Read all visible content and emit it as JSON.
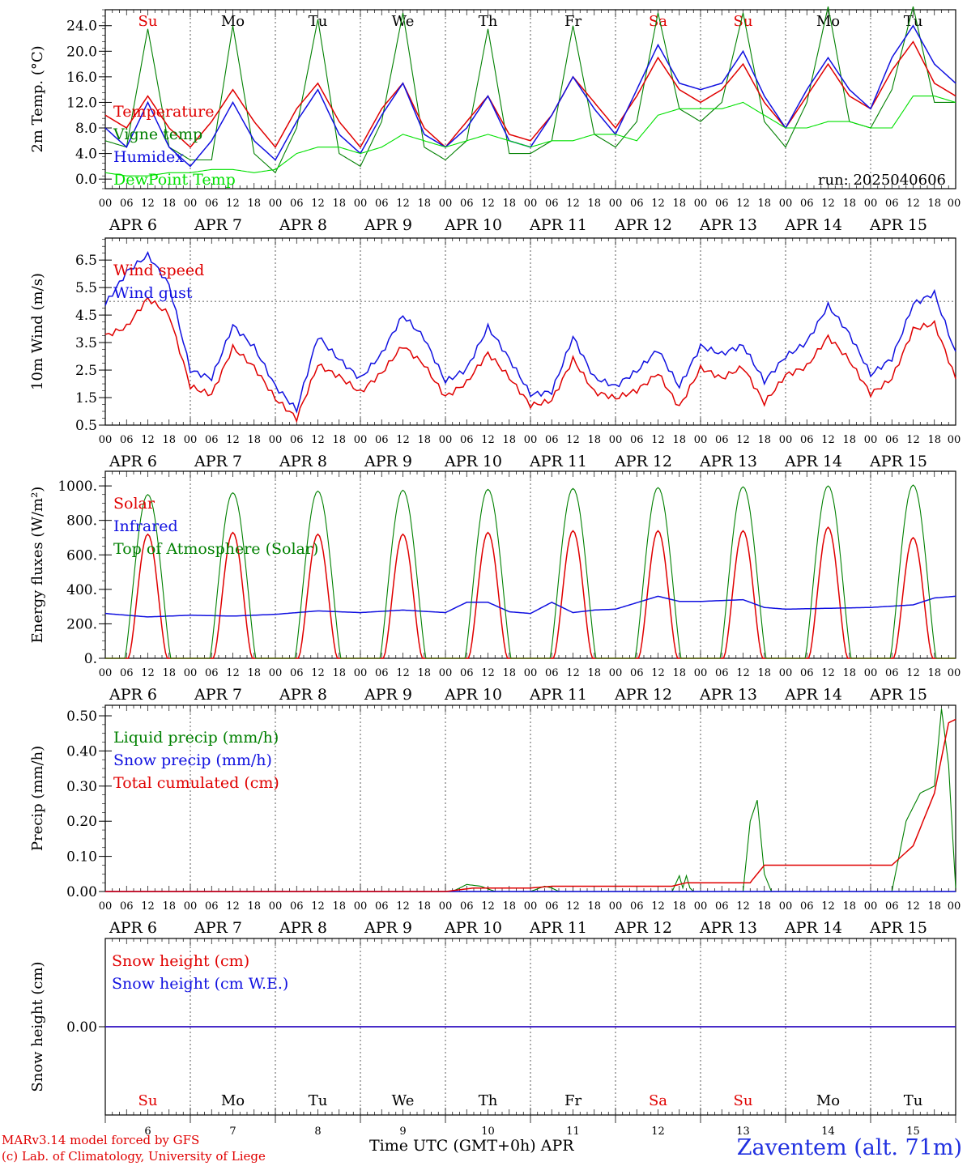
{
  "run_label": "run: 2025040606",
  "footer": {
    "model_line1": "MARv3.14 model forced by GFS",
    "model_line2": "(c) Lab. of Climatology, University of Liege",
    "station": "Zaventem (alt. 71m)",
    "xlabel": "Time UTC (GMT+0h) APR"
  },
  "time_axis": {
    "hour_ticks": [
      "00",
      "06",
      "12",
      "18"
    ],
    "final_hour_tick": "00",
    "day_labels": [
      "APR 6",
      "APR 7",
      "APR 8",
      "APR 9",
      "APR 10",
      "APR 11",
      "APR 12",
      "APR 13",
      "APR 14",
      "APR 15"
    ],
    "weekdays": [
      "Su",
      "Mo",
      "Tu",
      "We",
      "Th",
      "Fr",
      "Sa",
      "Su",
      "Mo",
      "Tu"
    ],
    "weekend_color": "#e00000",
    "weekday_color": "#000000",
    "day_numbers": [
      "6",
      "7",
      "8",
      "9",
      "10",
      "11",
      "12",
      "13",
      "14",
      "15"
    ]
  },
  "chart_data": [
    {
      "type": "line",
      "ylabel": "2m Temp. (°C)",
      "ylim": [
        -1.5,
        26.5
      ],
      "yticks": [
        "0.0",
        "4.0",
        "8.0",
        "12.0",
        "16.0",
        "20.0",
        "24.0"
      ],
      "ytick_values": [
        0,
        4,
        8,
        12,
        16,
        20,
        24
      ],
      "x_unit": "hours since 2025-04-06 00 UTC",
      "xlim": [
        0,
        240
      ],
      "series": [
        {
          "name": "Vigne temp",
          "color": "#008000",
          "x": [
            0,
            6,
            12,
            18,
            24,
            30,
            36,
            42,
            48,
            54,
            60,
            66,
            72,
            78,
            84,
            90,
            96,
            102,
            108,
            114,
            120,
            126,
            132,
            138,
            144,
            150,
            156,
            162,
            168,
            174,
            180,
            186,
            192,
            198,
            204,
            210,
            216,
            222,
            228,
            234,
            240
          ],
          "y": [
            6,
            5,
            23.5,
            5,
            3,
            3,
            24,
            4,
            1,
            8,
            25,
            4,
            2,
            9,
            26,
            5,
            3,
            6,
            23.5,
            4,
            4,
            6,
            24,
            7,
            5,
            9,
            26,
            11,
            9,
            12,
            26,
            9,
            5,
            12,
            27,
            9,
            8,
            14,
            27,
            12,
            12
          ]
        },
        {
          "name": "Temperature",
          "color": "#e00000",
          "x": [
            0,
            6,
            12,
            18,
            24,
            30,
            36,
            42,
            48,
            54,
            60,
            66,
            72,
            78,
            84,
            90,
            96,
            102,
            108,
            114,
            120,
            126,
            132,
            138,
            144,
            150,
            156,
            162,
            168,
            174,
            180,
            186,
            192,
            198,
            204,
            210,
            216,
            222,
            228,
            234,
            240
          ],
          "y": [
            10,
            8,
            13,
            8,
            5,
            9,
            14,
            9,
            5,
            11,
            15,
            9,
            5,
            11,
            15,
            8,
            5,
            9,
            13,
            7,
            6,
            10,
            16,
            12,
            8,
            13,
            19,
            14,
            12,
            14,
            18,
            12,
            8,
            13,
            18,
            13,
            11,
            17,
            21.5,
            15,
            13
          ]
        },
        {
          "name": "Humidex",
          "color": "#1010e0",
          "x": [
            0,
            6,
            12,
            18,
            24,
            30,
            36,
            42,
            48,
            54,
            60,
            66,
            72,
            78,
            84,
            90,
            96,
            102,
            108,
            114,
            120,
            126,
            132,
            138,
            144,
            150,
            156,
            162,
            168,
            174,
            180,
            186,
            192,
            198,
            204,
            210,
            216,
            222,
            228,
            234,
            240
          ],
          "y": [
            8,
            5,
            12,
            5,
            2,
            6,
            12,
            6,
            3,
            9,
            14,
            7,
            4,
            10,
            15,
            7,
            5,
            8,
            13,
            6,
            5,
            10,
            16,
            11,
            7,
            14,
            21,
            15,
            14,
            15,
            20,
            13,
            8,
            14,
            19,
            14,
            11,
            19,
            24,
            18,
            15
          ]
        },
        {
          "name": "DewPoint Temp",
          "color": "#00e000",
          "x": [
            0,
            6,
            12,
            18,
            24,
            30,
            36,
            42,
            48,
            54,
            60,
            66,
            72,
            78,
            84,
            90,
            96,
            102,
            108,
            114,
            120,
            126,
            132,
            138,
            144,
            150,
            156,
            162,
            168,
            174,
            180,
            186,
            192,
            198,
            204,
            210,
            216,
            222,
            228,
            234,
            240
          ],
          "y": [
            1,
            0.5,
            0.5,
            1,
            1,
            1.5,
            1.5,
            1,
            1.5,
            4,
            5,
            5,
            4,
            5,
            7,
            6,
            5,
            6,
            7,
            6,
            5,
            6,
            6,
            7,
            7,
            6,
            10,
            11,
            11,
            11,
            12,
            10,
            8,
            8,
            9,
            9,
            8,
            8,
            13,
            13,
            12
          ]
        }
      ]
    },
    {
      "type": "line",
      "ylabel": "10m Wind (m/s)",
      "ylim": [
        0.5,
        7.3
      ],
      "yticks": [
        "0.5",
        "1.5",
        "2.5",
        "3.5",
        "4.5",
        "5.5",
        "6.5"
      ],
      "ytick_values": [
        0.5,
        1.5,
        2.5,
        3.5,
        4.5,
        5.5,
        6.5
      ],
      "reference_line": 5,
      "x_unit": "hours since 2025-04-06 00 UTC",
      "xlim": [
        0,
        240
      ],
      "series": [
        {
          "name": "Wind speed",
          "color": "#e00000",
          "x": [
            0,
            6,
            12,
            18,
            24,
            30,
            36,
            42,
            48,
            54,
            60,
            66,
            72,
            78,
            84,
            90,
            96,
            102,
            108,
            114,
            120,
            126,
            132,
            138,
            144,
            150,
            156,
            162,
            168,
            174,
            180,
            186,
            192,
            198,
            204,
            210,
            216,
            222,
            228,
            234,
            240
          ],
          "y": [
            3.8,
            4,
            5,
            4.5,
            2,
            1.7,
            3.3,
            2.5,
            1.4,
            0.8,
            2.8,
            2.3,
            1.6,
            2.3,
            3.4,
            2.8,
            1.6,
            2,
            3,
            2.2,
            1.3,
            1.5,
            2.9,
            1.6,
            1.4,
            1.8,
            2.5,
            1.2,
            2.5,
            2.1,
            2.6,
            1.4,
            2.4,
            2.6,
            3.6,
            2.8,
            1.7,
            2.3,
            4,
            4.1,
            2.1
          ]
        },
        {
          "name": "Wind gust",
          "color": "#1010e0",
          "x": [
            0,
            6,
            12,
            18,
            24,
            30,
            36,
            42,
            48,
            54,
            60,
            66,
            72,
            78,
            84,
            90,
            96,
            102,
            108,
            114,
            120,
            126,
            132,
            138,
            144,
            150,
            156,
            162,
            168,
            174,
            180,
            186,
            192,
            198,
            204,
            210,
            216,
            222,
            228,
            234,
            240
          ],
          "y": [
            5,
            6.1,
            6.6,
            5.5,
            2.5,
            2.3,
            4.2,
            3.3,
            1.8,
            1,
            3.8,
            3,
            2.2,
            3,
            4.4,
            3.7,
            2.2,
            2.6,
            4,
            2.8,
            1.6,
            1.8,
            3.8,
            2.2,
            1.8,
            2.4,
            3.3,
            2,
            3.4,
            3,
            3.3,
            2.1,
            3.1,
            3.6,
            4.8,
            3.7,
            2.3,
            3,
            5,
            5.3,
            3
          ]
        }
      ]
    },
    {
      "type": "line",
      "ylabel": "Energy fluxes (W/m²)",
      "ylim": [
        0,
        1085
      ],
      "yticks": [
        "0.",
        "200.",
        "400.",
        "600.",
        "800.",
        "1000."
      ],
      "ytick_values": [
        0,
        200,
        400,
        600,
        800,
        1000
      ],
      "x_unit": "hours since 2025-04-06 00 UTC",
      "xlim": [
        0,
        240
      ],
      "series": [
        {
          "name": "Solar",
          "color": "#e00000",
          "diurnal_peaks": [
            720,
            730,
            720,
            720,
            730,
            740,
            740,
            740,
            760,
            700
          ]
        },
        {
          "name": "Infrared",
          "color": "#1010e0",
          "x": [
            0,
            12,
            24,
            36,
            48,
            60,
            72,
            84,
            96,
            102,
            108,
            114,
            120,
            126,
            132,
            138,
            144,
            156,
            162,
            168,
            180,
            186,
            192,
            204,
            216,
            228,
            234,
            240
          ],
          "y": [
            260,
            240,
            250,
            245,
            255,
            275,
            265,
            280,
            265,
            325,
            325,
            270,
            260,
            325,
            265,
            280,
            285,
            360,
            330,
            330,
            340,
            295,
            285,
            290,
            295,
            310,
            350,
            360
          ]
        },
        {
          "name": "Top of Atmosphere (Solar)",
          "color": "#008000",
          "diurnal_peaks": [
            950,
            960,
            970,
            975,
            980,
            985,
            990,
            995,
            1000,
            1005
          ]
        }
      ]
    },
    {
      "type": "line",
      "ylabel": "Precip (mm/h)",
      "ylim": [
        0,
        0.53
      ],
      "yticks": [
        "0.00",
        "0.10",
        "0.20",
        "0.30",
        "0.40",
        "0.50"
      ],
      "ytick_values": [
        0,
        0.1,
        0.2,
        0.3,
        0.4,
        0.5
      ],
      "x_unit": "hours since 2025-04-06 00 UTC",
      "xlim": [
        0,
        240
      ],
      "series": [
        {
          "name": "Liquid precip (mm/h)",
          "color": "#008000",
          "x": [
            0,
            98,
            102,
            106,
            110,
            120,
            124,
            126,
            128,
            160,
            162,
            163,
            164,
            165,
            166,
            180,
            182,
            184,
            186,
            188,
            212,
            222,
            226,
            230,
            234,
            236,
            238,
            240
          ],
          "y": [
            0,
            0,
            0.02,
            0.015,
            0,
            0,
            0.015,
            0.01,
            0,
            0,
            0.045,
            0.01,
            0.045,
            0.01,
            0,
            0,
            0.2,
            0.26,
            0.05,
            0,
            0,
            0,
            0.2,
            0.28,
            0.3,
            0.52,
            0.36,
            0.01
          ]
        },
        {
          "name": "Snow precip (mm/h)",
          "color": "#1010e0",
          "x": [
            0,
            240
          ],
          "y": [
            0,
            0
          ]
        },
        {
          "name": "Total cumulated (cm)",
          "color": "#e00000",
          "x": [
            0,
            96,
            104,
            120,
            126,
            160,
            164,
            182,
            186,
            222,
            228,
            234,
            238,
            240
          ],
          "y": [
            0,
            0,
            0.01,
            0.01,
            0.015,
            0.015,
            0.025,
            0.025,
            0.075,
            0.075,
            0.13,
            0.28,
            0.48,
            0.49
          ]
        }
      ]
    },
    {
      "type": "line",
      "ylabel": "Snow height (cm)",
      "yticks": [
        "0.00"
      ],
      "ytick_values": [
        0
      ],
      "x_unit": "hours since 2025-04-06 00 UTC",
      "xlim": [
        0,
        240
      ],
      "series": [
        {
          "name": "Snow height (cm)",
          "color": "#e00000",
          "x": [
            0,
            240
          ],
          "y": [
            0,
            0
          ]
        },
        {
          "name": "Snow height (cm W.E.)",
          "color": "#1010e0",
          "x": [
            0,
            240
          ],
          "y": [
            0,
            0
          ]
        }
      ]
    }
  ]
}
